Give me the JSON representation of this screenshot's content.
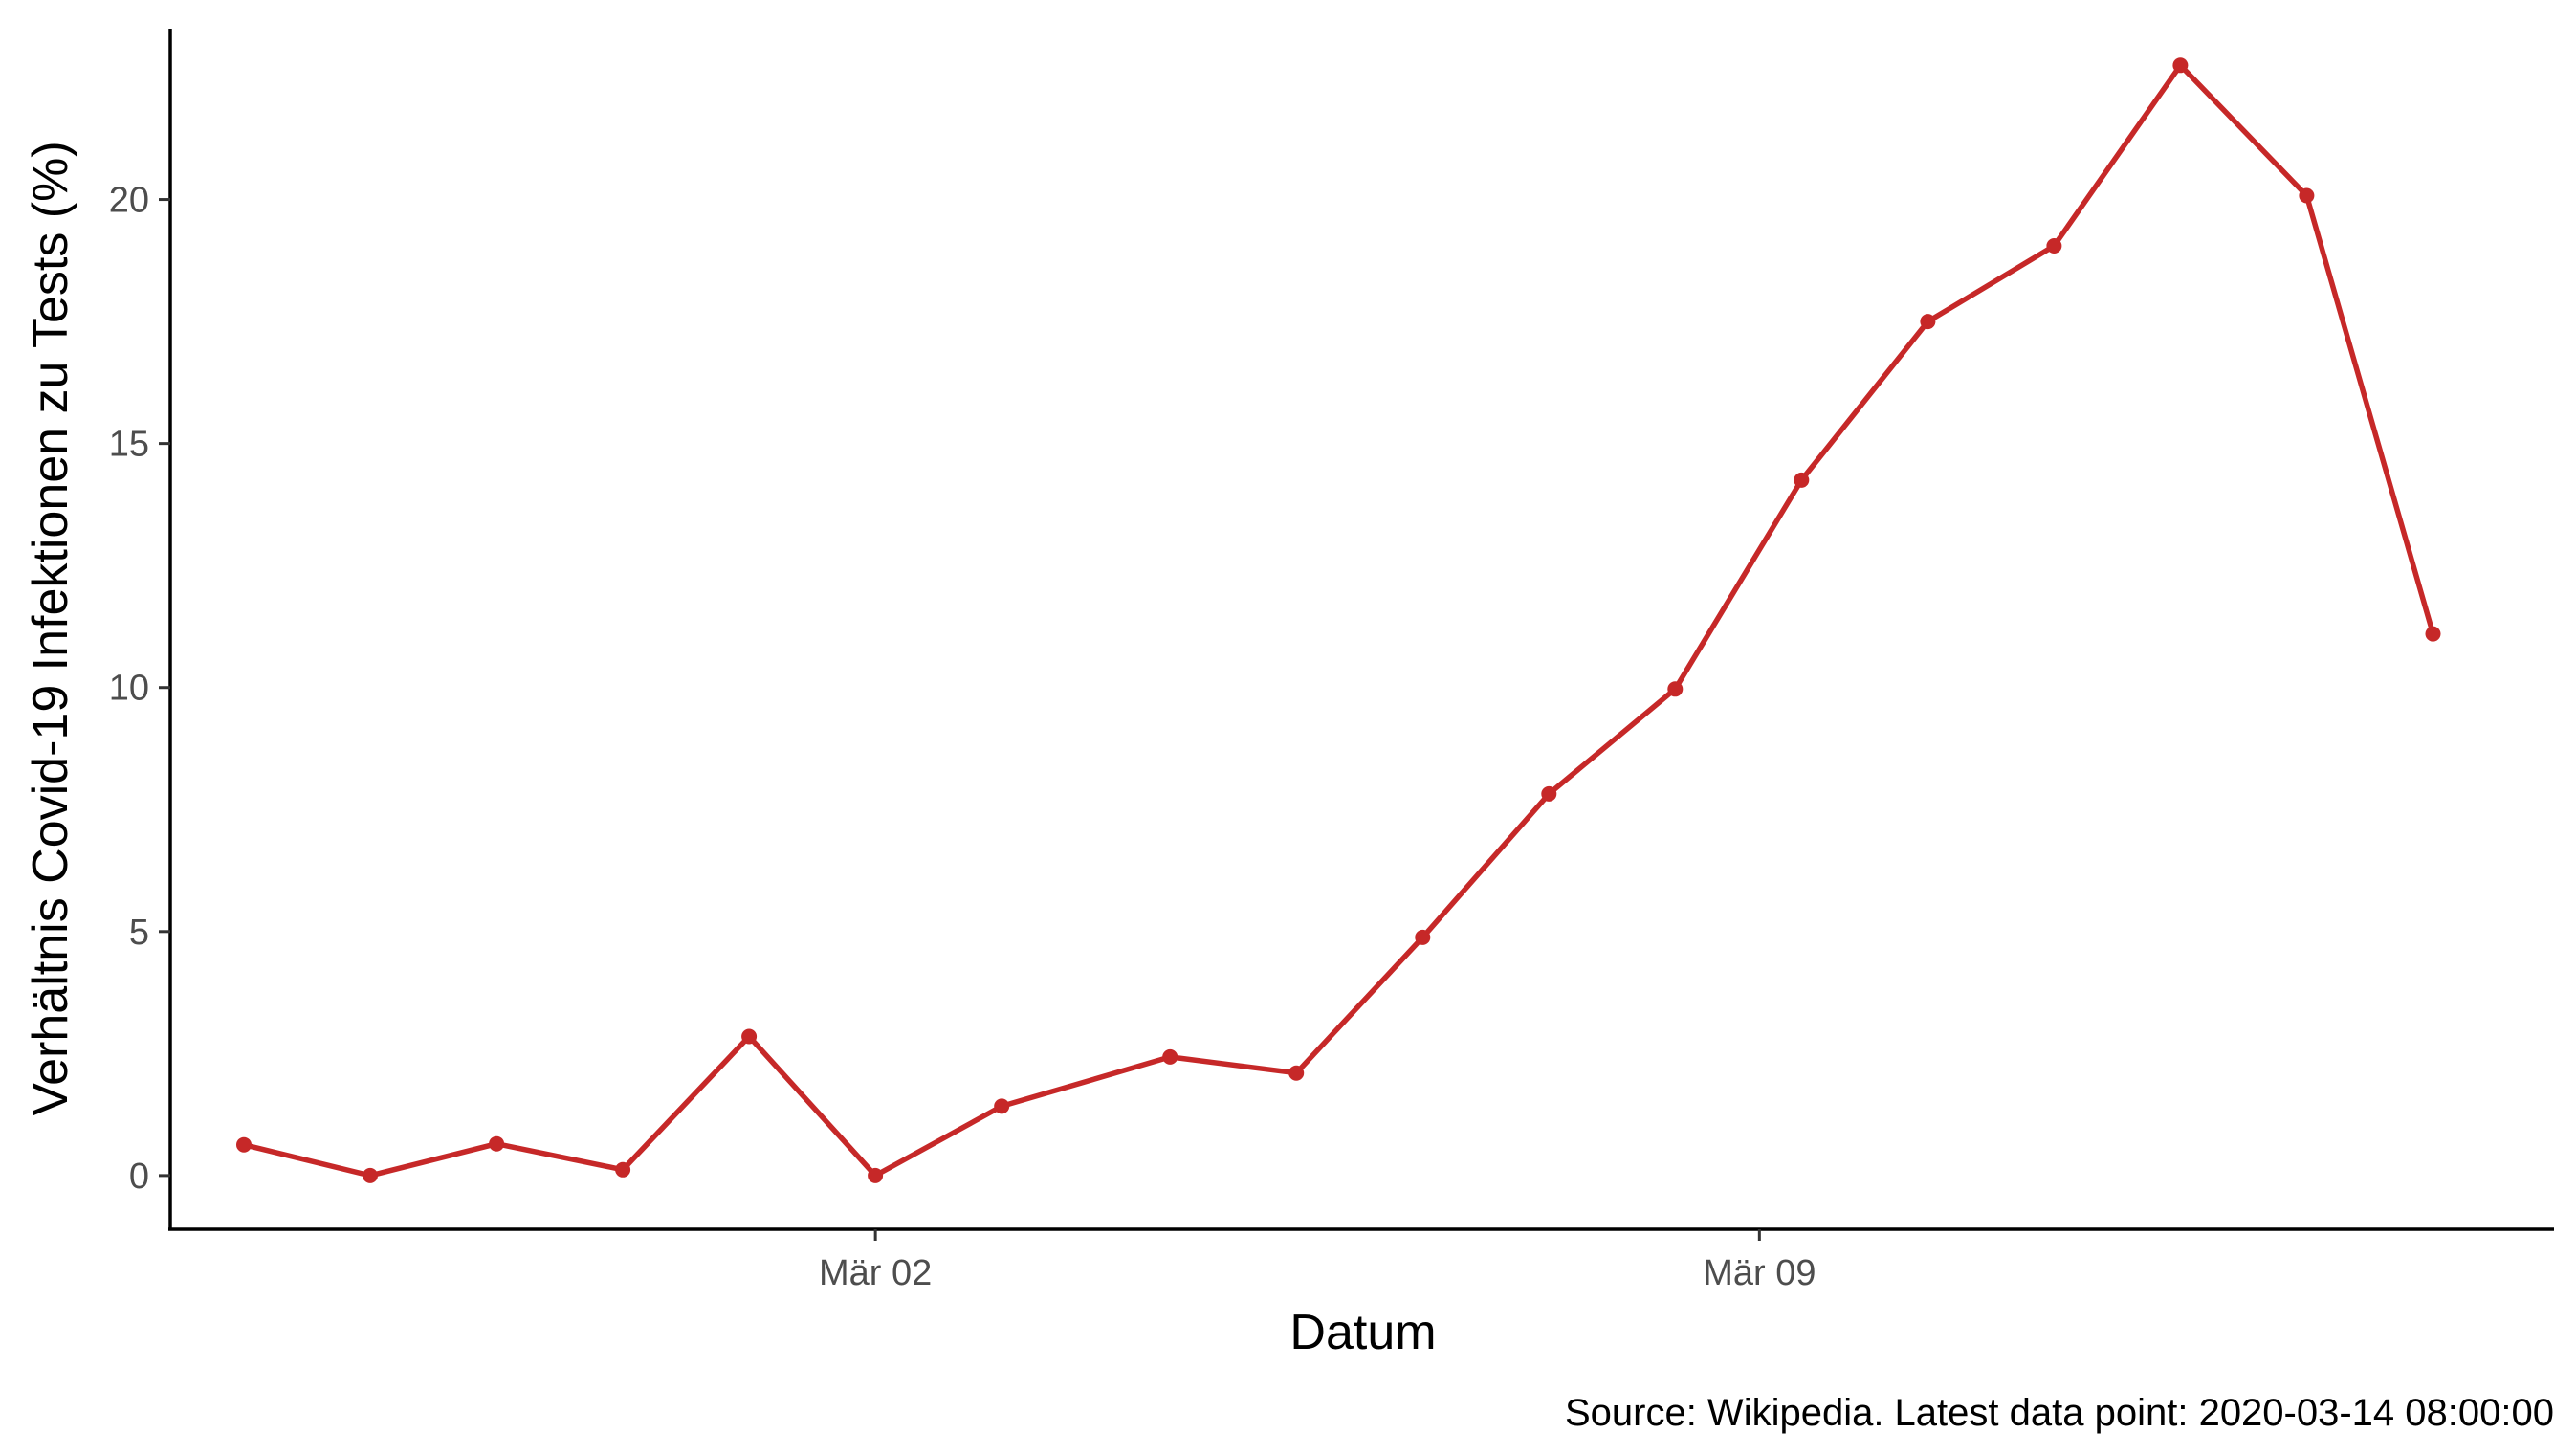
{
  "chart_data": {
    "type": "line",
    "xlabel": "Datum",
    "ylabel": "Verhältnis Covid-19 Infektionen zu Tests (%)",
    "caption": "Source: Wikipedia. Latest data point:  2020-03-14 08:00:00",
    "ylim": [
      -1.1,
      23.5
    ],
    "xlim": [
      "2020-02-25T10:00",
      "2020-03-15T07:00"
    ],
    "x_ticks": [
      {
        "x": "2020-03-02",
        "label": "Mär 02"
      },
      {
        "x": "2020-03-09",
        "label": "Mär 09"
      }
    ],
    "y_ticks": [
      0,
      5,
      10,
      15,
      20
    ],
    "grid": false,
    "series": [
      {
        "color": "#c62828",
        "points": [
          {
            "x": "2020-02-26",
            "y": 0.63
          },
          {
            "x": "2020-02-27",
            "y": 0.0
          },
          {
            "x": "2020-02-28",
            "y": 0.65
          },
          {
            "x": "2020-02-29",
            "y": 0.12
          },
          {
            "x": "2020-03-01",
            "y": 2.85
          },
          {
            "x": "2020-03-02",
            "y": 0.0
          },
          {
            "x": "2020-03-03",
            "y": 1.42
          },
          {
            "x": "2020-03-04T08:00",
            "y": 2.43
          },
          {
            "x": "2020-03-05T08:00",
            "y": 2.1
          },
          {
            "x": "2020-03-06T08:00",
            "y": 4.88
          },
          {
            "x": "2020-03-07T08:00",
            "y": 7.82
          },
          {
            "x": "2020-03-08T08:00",
            "y": 9.97
          },
          {
            "x": "2020-03-09T08:00",
            "y": 14.25
          },
          {
            "x": "2020-03-10T08:00",
            "y": 17.5
          },
          {
            "x": "2020-03-11T08:00",
            "y": 19.05
          },
          {
            "x": "2020-03-12T08:00",
            "y": 22.75
          },
          {
            "x": "2020-03-13T08:00",
            "y": 20.08
          },
          {
            "x": "2020-03-14T08:00",
            "y": 11.1
          }
        ]
      }
    ]
  }
}
